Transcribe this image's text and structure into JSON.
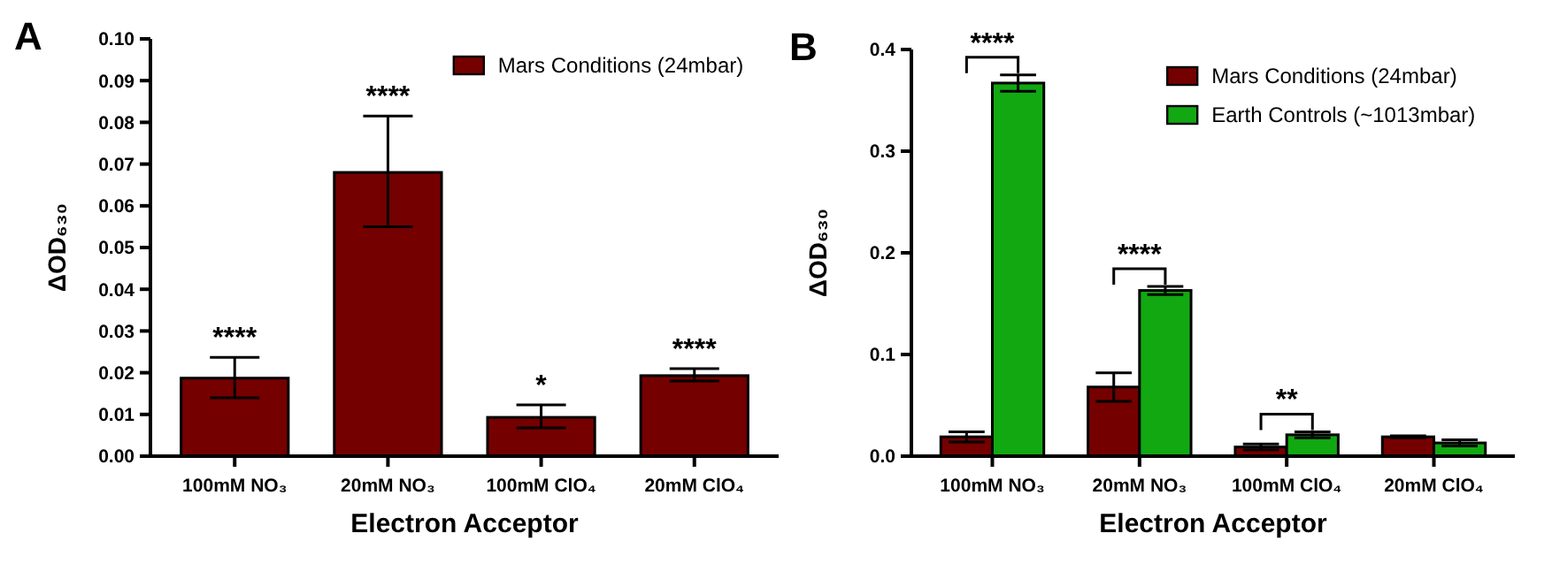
{
  "chart_data": [
    {
      "type": "bar",
      "title": "A",
      "xlabel": "Electron Acceptor",
      "ylabel": "ΔOD₆₃₀",
      "categories": [
        "100mM NO₃",
        "20mM NO₃",
        "100mM ClO₄",
        "20mM ClO₄"
      ],
      "series": [
        {
          "name": "Mars Conditions (24mbar)",
          "color": "#750000",
          "values": [
            0.0187,
            0.068,
            0.0093,
            0.0193
          ],
          "errors": [
            [
              0.014,
              0.0237
            ],
            [
              0.055,
              0.0815
            ],
            [
              0.0068,
              0.0123
            ],
            [
              0.018,
              0.021
            ]
          ]
        }
      ],
      "ylim": [
        0,
        0.1
      ],
      "yticks": [
        {
          "value": 0,
          "label": "0.00"
        },
        {
          "value": 0.01,
          "label": "0.01"
        },
        {
          "value": 0.02,
          "label": "0.02"
        },
        {
          "value": 0.03,
          "label": "0.03"
        },
        {
          "value": 0.04,
          "label": "0.04"
        },
        {
          "value": 0.05,
          "label": "0.05"
        },
        {
          "value": 0.06,
          "label": "0.06"
        },
        {
          "value": 0.07,
          "label": "0.07"
        },
        {
          "value": 0.08,
          "label": "0.08"
        },
        {
          "value": 0.09,
          "label": "0.09"
        },
        {
          "value": 0.1,
          "label": "0.10"
        }
      ],
      "legend": "top right",
      "annotations": [
        "****",
        "****",
        "*",
        "****"
      ]
    },
    {
      "type": "bar",
      "title": "B",
      "xlabel": "Electron Acceptor",
      "ylabel": "ΔOD₆₃₀",
      "categories": [
        "100mM NO₃",
        "20mM NO₃",
        "100mM ClO₄",
        "20mM ClO₄"
      ],
      "series": [
        {
          "name": "Mars Conditions (24mbar)",
          "color": "#750000",
          "values": [
            0.019,
            0.068,
            0.009,
            0.019
          ],
          "errors": [
            0.005,
            0.014,
            0.003,
            0.001
          ]
        },
        {
          "name": "Earth Controls (~1013mbar)",
          "color": "#12a812",
          "values": [
            0.367,
            0.163,
            0.021,
            0.013
          ],
          "errors": [
            0.008,
            0.004,
            0.003,
            0.003
          ]
        }
      ],
      "ylim": [
        0,
        0.4
      ],
      "yticks": [
        {
          "value": 0,
          "label": "0.0"
        },
        {
          "value": 0.1,
          "label": "0.1"
        },
        {
          "value": 0.2,
          "label": "0.2"
        },
        {
          "value": 0.3,
          "label": "0.3"
        },
        {
          "value": 0.4,
          "label": "0.4"
        }
      ],
      "legend": "top right",
      "annotations": [
        "****",
        "****",
        "**"
      ]
    }
  ]
}
